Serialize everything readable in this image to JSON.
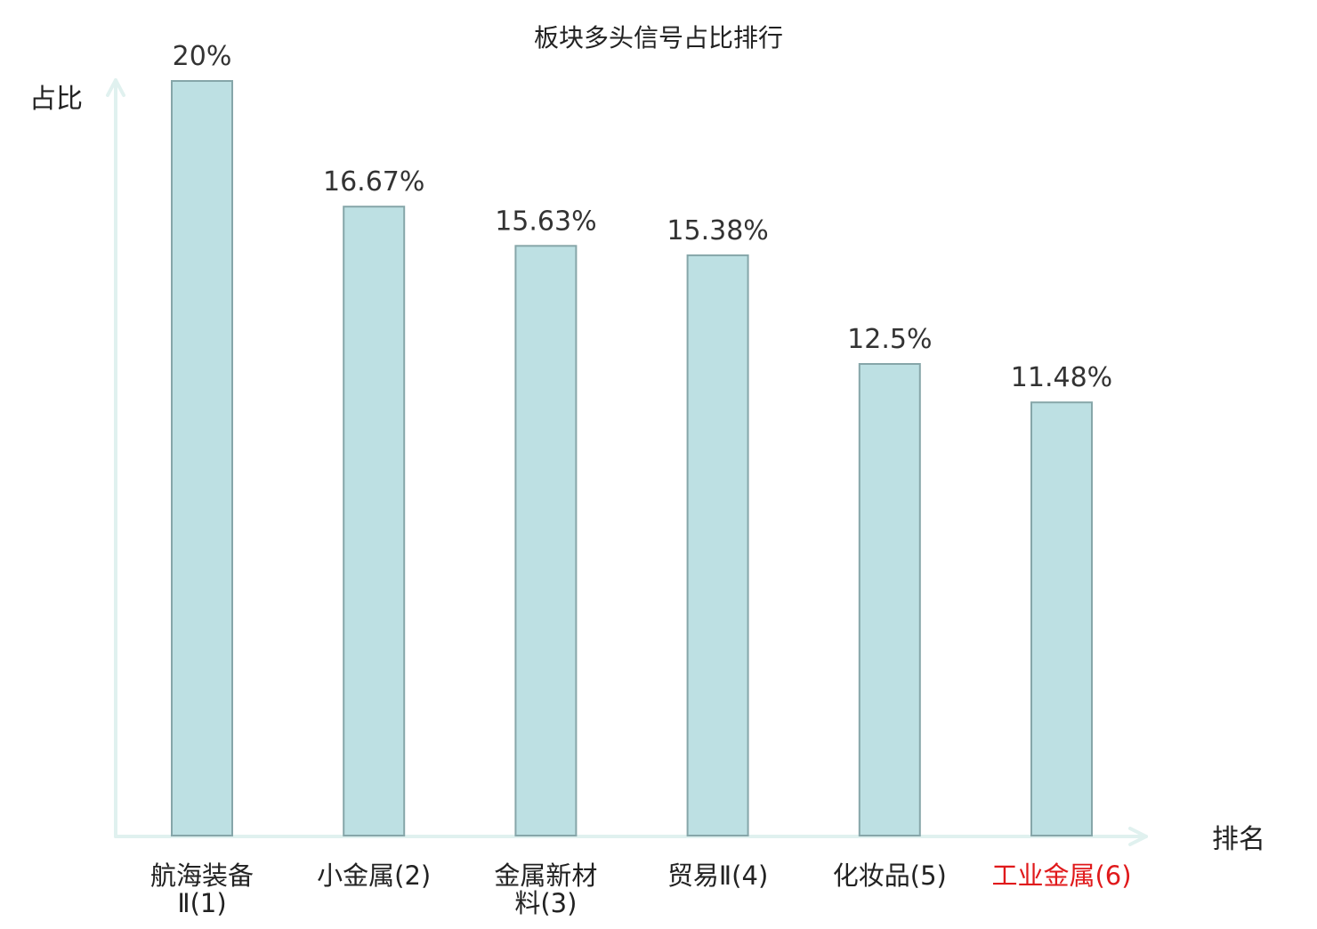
{
  "chart_data": {
    "type": "bar",
    "title": "板块多头信号占比排行",
    "ylabel": "占比",
    "xlabel": "排名",
    "ylim": [
      0,
      20
    ],
    "grid": false,
    "categories": [
      [
        "航海装备",
        "Ⅱ(1)"
      ],
      [
        "小金属(2)"
      ],
      [
        "金属新材",
        "料(3)"
      ],
      [
        "贸易Ⅱ(4)"
      ],
      [
        "化妆品(5)"
      ],
      [
        "工业金属(6)"
      ]
    ],
    "values": [
      20,
      16.67,
      15.63,
      15.38,
      12.5,
      11.48
    ],
    "value_labels": [
      "20%",
      "16.67%",
      "15.63%",
      "15.38%",
      "12.5%",
      "11.48%"
    ],
    "highlight_index": 5
  },
  "colors": {
    "bar_fill": "#bde0e3",
    "bar_stroke": "#86a6a9",
    "axis": "#e0f1ef",
    "text": "#222222",
    "highlight": "#e0191b"
  }
}
